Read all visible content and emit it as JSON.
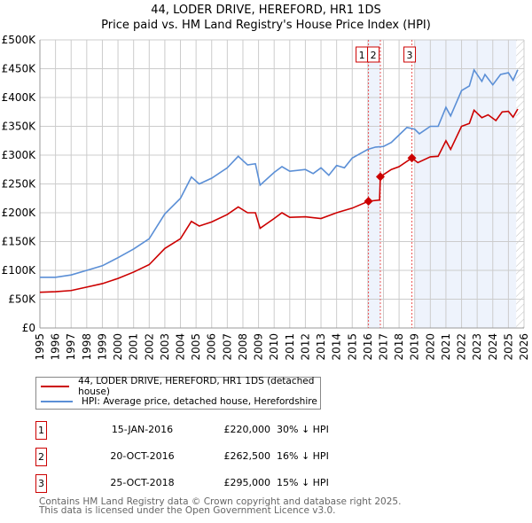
{
  "title_line1": "44, LODER DRIVE, HEREFORD, HR1 1DS",
  "title_line2": "Price paid vs. HM Land Registry's House Price Index (HPI)",
  "chart_data": {
    "type": "line",
    "title": "44, LODER DRIVE, HEREFORD, HR1 1DS — Price paid vs. HM Land Registry's House Price Index (HPI)",
    "xlim": [
      1995,
      2026
    ],
    "ylim": [
      0,
      500000
    ],
    "x_ticks": [
      "1995",
      "1996",
      "1997",
      "1998",
      "1999",
      "2000",
      "2001",
      "2002",
      "2003",
      "2004",
      "2005",
      "2006",
      "2007",
      "2008",
      "2009",
      "2010",
      "2011",
      "2012",
      "2013",
      "2014",
      "2015",
      "2016",
      "2017",
      "2018",
      "2019",
      "2020",
      "2021",
      "2022",
      "2023",
      "2024",
      "2025",
      "2026"
    ],
    "y_ticks": [
      {
        "v": 0,
        "label": "£0"
      },
      {
        "v": 50000,
        "label": "£50K"
      },
      {
        "v": 100000,
        "label": "£100K"
      },
      {
        "v": 150000,
        "label": "£150K"
      },
      {
        "v": 200000,
        "label": "£200K"
      },
      {
        "v": 250000,
        "label": "£250K"
      },
      {
        "v": 300000,
        "label": "£300K"
      },
      {
        "v": 350000,
        "label": "£350K"
      },
      {
        "v": 400000,
        "label": "£400K"
      },
      {
        "v": 450000,
        "label": "£450K"
      },
      {
        "v": 500000,
        "label": "£500K"
      }
    ],
    "grid": true,
    "series": [
      {
        "name": "44, LODER DRIVE, HEREFORD, HR1 1DS (detached house)",
        "color": "#cc0000",
        "x": [
          1995,
          1996,
          1997,
          1998,
          1999,
          2000,
          2001,
          2002,
          2003,
          2004,
          2004.7,
          2005.2,
          2006,
          2007,
          2007.7,
          2008.3,
          2008.8,
          2009.1,
          2010,
          2010.5,
          2011,
          2012,
          2013,
          2014,
          2015,
          2016.04,
          2016.75,
          2016.8,
          2017.5,
          2018,
          2018.82,
          2019.2,
          2020,
          2020.5,
          2021,
          2021.3,
          2022,
          2022.5,
          2022.8,
          2023.3,
          2023.7,
          2024.2,
          2024.6,
          2025,
          2025.3,
          2025.6
        ],
        "y": [
          62000,
          63000,
          65000,
          71000,
          77000,
          86000,
          97000,
          110000,
          138000,
          155000,
          185000,
          177000,
          184000,
          197000,
          210000,
          200000,
          200000,
          173000,
          190000,
          200000,
          192000,
          193000,
          190000,
          200000,
          208000,
          220000,
          222000,
          262500,
          275000,
          280000,
          295000,
          287000,
          297000,
          298000,
          325000,
          310000,
          350000,
          355000,
          378000,
          365000,
          370000,
          360000,
          375000,
          376000,
          366000,
          380000
        ]
      },
      {
        "name": "HPI: Average price, detached house, Herefordshire",
        "color": "#5b8fd6",
        "x": [
          1995,
          1996,
          1997,
          1998,
          1999,
          2000,
          2001,
          2002,
          2003,
          2004,
          2004.7,
          2005.2,
          2006,
          2007,
          2007.7,
          2008.3,
          2008.8,
          2009.1,
          2010,
          2010.5,
          2011,
          2012,
          2012.5,
          2013,
          2013.5,
          2014,
          2014.5,
          2015,
          2016,
          2016.5,
          2017,
          2017.5,
          2018,
          2018.5,
          2019,
          2019.3,
          2020,
          2020.5,
          2021,
          2021.3,
          2022,
          2022.5,
          2022.8,
          2023.3,
          2023.5,
          2024,
          2024.5,
          2025,
          2025.3,
          2025.6
        ],
        "y": [
          88000,
          88000,
          92000,
          100000,
          108000,
          122000,
          137000,
          155000,
          198000,
          225000,
          262000,
          250000,
          260000,
          278000,
          298000,
          283000,
          285000,
          248000,
          270000,
          280000,
          272000,
          275000,
          268000,
          278000,
          265000,
          282000,
          278000,
          295000,
          310000,
          314000,
          315000,
          322000,
          335000,
          348000,
          345000,
          337000,
          350000,
          350000,
          383000,
          368000,
          412000,
          420000,
          448000,
          428000,
          440000,
          422000,
          440000,
          443000,
          430000,
          448000
        ]
      }
    ],
    "annotations": [
      {
        "label": "1",
        "x": 2016.04,
        "y": 220000
      },
      {
        "label": "2",
        "x": 2016.8,
        "y": 262500
      },
      {
        "label": "3",
        "x": 2018.82,
        "y": 295000
      }
    ],
    "shaded_regions": [
      [
        2016.04,
        2016.8
      ],
      [
        2019.0,
        2025.5
      ]
    ],
    "hatched_from": 2025.5,
    "legend": "below"
  },
  "legend": {
    "items": [
      "44, LODER DRIVE, HEREFORD, HR1 1DS (detached house)",
      "HPI: Average price, detached house, Herefordshire"
    ]
  },
  "sales": [
    {
      "num": "1",
      "date": "15-JAN-2016",
      "price": "£220,000",
      "hpi": "30% ↓ HPI"
    },
    {
      "num": "2",
      "date": "20-OCT-2016",
      "price": "£262,500",
      "hpi": "16% ↓ HPI"
    },
    {
      "num": "3",
      "date": "25-OCT-2018",
      "price": "£295,000",
      "hpi": "15% ↓ HPI"
    }
  ],
  "footer": {
    "line1": "Contains HM Land Registry data © Crown copyright and database right 2025.",
    "line2": "This data is licensed under the Open Government Licence v3.0."
  }
}
